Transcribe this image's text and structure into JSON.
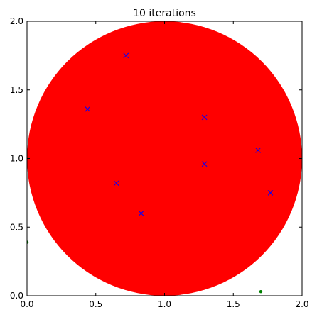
{
  "chart_data": {
    "type": "scatter",
    "title": "10 iterations",
    "xlabel": "",
    "ylabel": "",
    "xlim": [
      0.0,
      2.0
    ],
    "ylim": [
      0.0,
      2.0
    ],
    "xticks": [
      "0.0",
      "0.5",
      "1.0",
      "1.5",
      "2.0"
    ],
    "yticks": [
      "0.0",
      "0.5",
      "1.0",
      "1.5",
      "2.0"
    ],
    "grid": false,
    "circle": {
      "center": [
        1.0,
        1.0
      ],
      "radius": 1.0,
      "color": "#ff0000"
    },
    "series": [
      {
        "marker": "x",
        "color": "#0000ff",
        "x": [
          0.72,
          0.44,
          1.29,
          1.68,
          1.29,
          1.77,
          0.65,
          0.83
        ],
        "y": [
          1.75,
          1.36,
          1.3,
          1.06,
          0.96,
          0.75,
          0.82,
          0.6
        ]
      },
      {
        "marker": "o",
        "color": "#008000",
        "x": [
          0.0,
          1.7
        ],
        "y": [
          0.39,
          0.03
        ]
      }
    ]
  }
}
